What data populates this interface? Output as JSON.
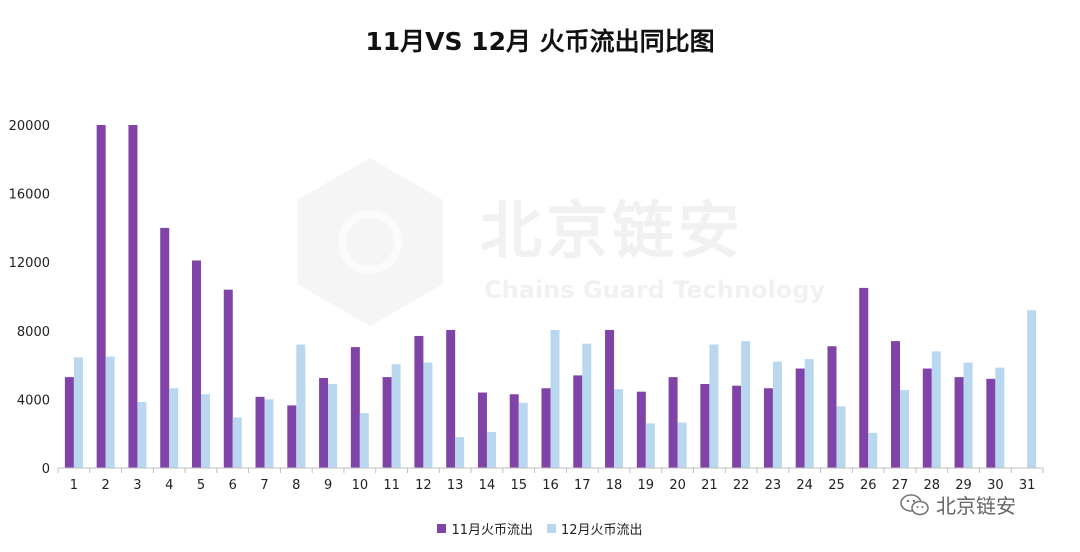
{
  "chart_data": {
    "type": "bar",
    "title": "11月VS 12月 火币流出同比图",
    "categories": [
      "1",
      "2",
      "3",
      "4",
      "5",
      "6",
      "7",
      "8",
      "9",
      "10",
      "11",
      "12",
      "13",
      "14",
      "15",
      "16",
      "17",
      "18",
      "19",
      "20",
      "21",
      "22",
      "23",
      "24",
      "25",
      "26",
      "27",
      "28",
      "29",
      "30",
      "31"
    ],
    "series": [
      {
        "name": "11月火币流出",
        "color": "#8043a8",
        "values": [
          5300,
          20000,
          20000,
          14000,
          12100,
          10400,
          4150,
          3650,
          5250,
          7050,
          5300,
          7700,
          8050,
          4400,
          4300,
          4650,
          5400,
          8050,
          4450,
          5300,
          4900,
          4800,
          4650,
          5800,
          7100,
          10500,
          7400,
          5800,
          5300,
          5200,
          null
        ]
      },
      {
        "name": "12月火币流出",
        "color": "#b9d7ef",
        "values": [
          6450,
          6500,
          3850,
          4650,
          4300,
          2950,
          4000,
          7200,
          4900,
          3200,
          6050,
          6150,
          1800,
          2100,
          3800,
          8050,
          7250,
          4600,
          2600,
          2650,
          7200,
          7400,
          6200,
          6350,
          3600,
          2050,
          4550,
          6800,
          6150,
          5850,
          9200
        ]
      }
    ],
    "yticks": [
      0,
      4000,
      8000,
      12000,
      16000,
      20000
    ],
    "ylim": [
      0,
      20000
    ],
    "xlabel": "",
    "ylabel": "",
    "grid": false,
    "legend_position": "bottom"
  },
  "watermark": {
    "text": "北京链安",
    "subtext": "Chains Guard Technology"
  },
  "brand": {
    "label": "北京链安",
    "icon": "wechat-icon"
  }
}
